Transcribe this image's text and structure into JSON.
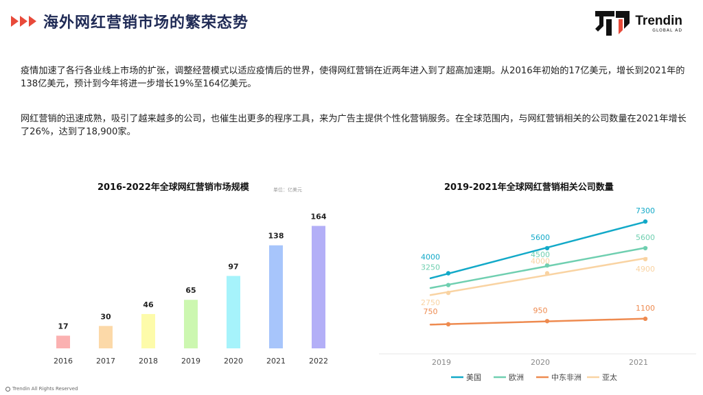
{
  "header": {
    "title": "海外网红营销市场的繁荣态势"
  },
  "logo": {
    "name": "Trendin",
    "sub": "GLOBAL AD"
  },
  "paragraphs": [
    "疫情加速了各行各业线上市场的扩张，调整经营模式以适应疫情后的世界，使得网红营销在近两年进入到了超高加速期。从2016年初始的17亿美元，增长到2021年的138亿美元，预计到今年将进一步增长19%至164亿美元。",
    "网红营销的迅速成熟，吸引了越来越多的公司，也催生出更多的程序工具，来为广告主提供个性化营销服务。在全球范围内，与网红营销相关的公司数量在2021年增长了26%，达到了18,900家。"
  ],
  "footer": {
    "text": "Trendin  All Rights Reserved"
  },
  "colors": {
    "accent": "#e84a3a",
    "title": "#1f2a55",
    "bars": [
      "#fbb1b1",
      "#fcd9a8",
      "#fdfbaa",
      "#ccf7b0",
      "#a6f3fb",
      "#a7c5fb",
      "#b3aff7"
    ],
    "series": [
      "#12a9c8",
      "#6fcfb0",
      "#ee8a4f",
      "#f9d3a2"
    ]
  },
  "chart_data": [
    {
      "type": "bar",
      "title": "2016-2022年全球网红营销市场规模",
      "unit": "单位：亿美元",
      "categories": [
        "2016",
        "2017",
        "2018",
        "2019",
        "2020",
        "2021",
        "2022"
      ],
      "values": [
        17,
        30,
        46,
        65,
        97,
        138,
        164
      ],
      "ylim": [
        0,
        180
      ]
    },
    {
      "type": "line",
      "title": "2019-2021年全球网红营销相关公司数量",
      "x": [
        "2019",
        "2020",
        "2021"
      ],
      "series": [
        {
          "name": "美国",
          "values": [
            4000,
            5600,
            7300
          ]
        },
        {
          "name": "欧洲",
          "values": [
            3250,
            4500,
            5600
          ]
        },
        {
          "name": "中东非洲",
          "values": [
            750,
            950,
            1100
          ]
        },
        {
          "name": "亚太",
          "values": [
            2750,
            4000,
            4900
          ]
        }
      ],
      "ylim": [
        0,
        8000
      ]
    }
  ]
}
